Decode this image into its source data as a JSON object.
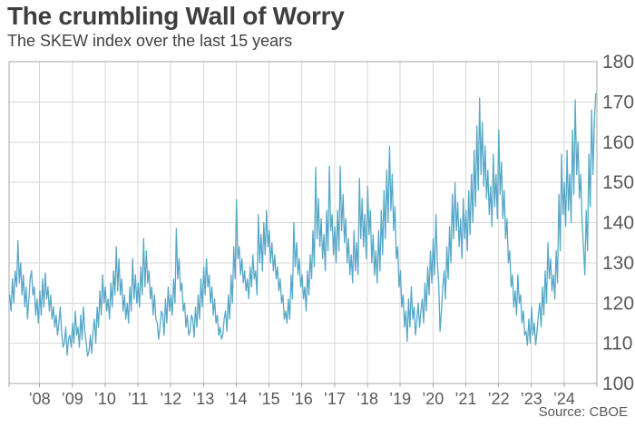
{
  "header": {
    "title": "The crumbling Wall of Worry",
    "subtitle": "The SKEW index over the last 15 years"
  },
  "source": "Source: CBOE",
  "colors": {
    "line": "#57a8c8",
    "grid": "#d7d7d7",
    "frame": "#a3a4a6",
    "title_text": "#3e3e40",
    "axis_text": "#57585a",
    "background": "#ffffff"
  },
  "chart_data": {
    "type": "line",
    "title": "The crumbling Wall of Worry",
    "subtitle": "The SKEW index over the last 15 years",
    "series_name": "CBOE SKEW index",
    "grid": true,
    "legend": "none",
    "y_axis_side": "right",
    "x_domain": [
      2007.07,
      2025.0
    ],
    "y_domain": [
      100,
      180
    ],
    "ylim": [
      100,
      180
    ],
    "y_ticks": [
      100,
      110,
      120,
      130,
      140,
      150,
      160,
      170,
      180
    ],
    "x_ticks": [
      {
        "year": 2008,
        "label": "’08"
      },
      {
        "year": 2009,
        "label": "’09"
      },
      {
        "year": 2010,
        "label": "’10"
      },
      {
        "year": 2011,
        "label": "’11"
      },
      {
        "year": 2012,
        "label": "’12"
      },
      {
        "year": 2013,
        "label": "’13"
      },
      {
        "year": 2014,
        "label": "’14"
      },
      {
        "year": 2015,
        "label": "’15"
      },
      {
        "year": 2016,
        "label": "’16"
      },
      {
        "year": 2017,
        "label": "’17"
      },
      {
        "year": 2018,
        "label": "’18"
      },
      {
        "year": 2019,
        "label": "’19"
      },
      {
        "year": 2020,
        "label": "’20"
      },
      {
        "year": 2021,
        "label": "’21"
      },
      {
        "year": 2022,
        "label": "’22"
      },
      {
        "year": 2023,
        "label": "’23"
      },
      {
        "year": 2024,
        "label": "’24"
      }
    ],
    "x_start": 2007.09,
    "x_step_years": 0.0416667,
    "values": [
      122,
      118,
      126,
      120,
      128,
      124,
      135.5,
      125,
      130,
      122,
      127,
      119,
      124,
      116,
      121,
      126,
      128,
      122,
      124,
      117,
      121,
      115,
      123,
      117,
      126,
      119,
      127.5,
      121,
      124,
      118,
      122,
      116,
      119,
      114,
      117,
      112,
      115,
      119,
      113,
      109,
      110,
      114,
      107,
      111,
      112,
      109,
      115,
      110,
      118,
      112,
      114,
      109,
      117,
      111,
      119,
      113,
      110,
      106.8,
      108,
      112,
      107.5,
      113,
      116,
      110,
      119,
      114,
      123,
      117,
      127,
      120,
      124,
      118,
      121,
      116,
      125,
      119,
      128,
      122,
      134,
      123,
      131,
      122,
      126,
      118,
      122,
      116,
      120,
      115,
      124,
      118,
      131,
      121,
      127,
      120,
      125,
      119,
      129,
      122,
      136,
      124,
      133,
      125,
      128,
      121,
      124,
      117,
      122,
      116,
      115,
      111,
      114,
      118,
      117,
      112,
      121,
      115,
      124,
      118,
      122,
      117,
      126,
      120,
      138.5,
      126,
      131,
      123,
      125,
      118,
      120,
      114,
      117,
      112,
      113,
      117,
      116,
      111.5,
      119,
      114,
      122,
      116,
      126,
      119,
      129,
      122,
      131,
      124,
      127,
      120,
      124,
      117,
      121,
      115,
      117,
      112,
      114,
      111,
      112,
      116,
      118,
      113,
      122,
      116,
      127,
      120,
      134,
      126,
      145.7,
      131,
      134,
      127,
      131,
      125,
      128,
      123,
      126,
      121,
      129,
      124,
      132,
      126,
      128,
      122,
      142,
      130,
      137,
      128,
      140,
      132,
      143,
      134,
      138,
      130,
      135,
      128,
      132,
      126,
      129,
      123,
      126,
      120,
      122,
      116,
      118,
      115,
      121,
      116,
      127,
      121,
      140,
      129,
      135,
      127,
      131,
      124,
      127,
      121,
      124,
      118,
      128,
      122,
      132,
      126,
      138,
      129,
      153.7,
      136,
      146,
      134,
      141,
      131,
      137,
      128,
      143,
      133,
      154,
      138,
      142,
      132,
      139,
      130,
      143,
      133,
      154,
      138,
      147,
      135,
      141,
      130,
      136,
      127,
      132,
      125,
      138,
      128,
      135,
      127,
      151,
      136,
      146,
      134,
      142,
      131,
      149,
      137,
      143,
      130,
      137,
      127,
      133,
      125,
      138,
      128,
      143,
      132,
      148,
      136,
      153,
      140,
      159,
      143,
      152,
      138,
      144,
      131,
      134,
      124,
      128,
      119,
      122,
      114,
      118,
      110.5,
      121,
      114,
      124,
      116,
      119,
      112,
      116,
      120,
      114,
      118,
      121,
      115,
      125,
      118,
      129,
      122,
      133,
      125,
      136,
      127,
      142,
      130,
      125,
      113,
      118,
      124,
      128,
      121,
      134,
      126,
      139,
      130,
      147,
      136,
      150,
      138,
      145,
      134,
      141,
      131,
      146,
      136,
      143,
      133,
      148,
      137,
      152,
      140,
      158,
      144,
      164,
      148,
      171,
      152,
      165,
      149,
      159,
      146,
      153,
      142,
      149,
      139,
      157,
      144,
      152,
      141,
      163,
      147,
      155,
      141,
      148,
      136,
      141,
      130,
      133,
      124,
      127,
      119,
      123,
      117,
      127,
      120,
      122,
      115,
      118,
      112,
      113,
      109.5,
      116,
      110,
      119,
      112,
      115,
      109.6,
      113,
      117,
      120,
      114,
      124,
      117,
      128,
      120,
      135,
      126,
      131,
      123,
      127,
      121,
      133,
      125,
      147,
      133,
      157,
      142,
      150,
      139,
      158,
      143,
      152,
      140,
      163,
      147,
      170.5,
      152,
      160,
      146,
      152,
      140,
      134,
      127,
      143,
      133,
      157,
      144,
      168,
      152,
      165,
      172
    ]
  }
}
